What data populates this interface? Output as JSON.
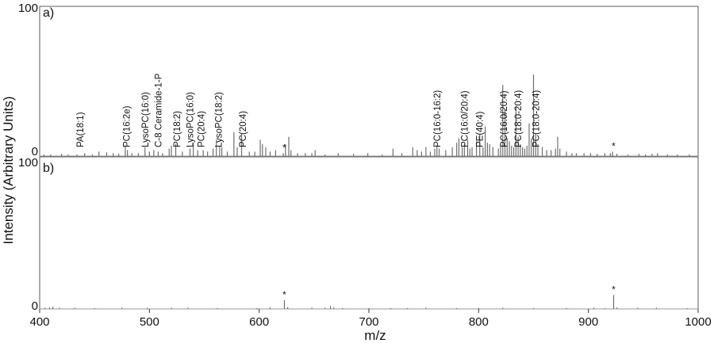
{
  "chart_data": {
    "type": "line",
    "xlabel": "m/z",
    "ylabel": "Intensity (Arbitrary Units)",
    "xlim": [
      400,
      1000
    ],
    "x_ticks": [
      400,
      500,
      600,
      700,
      800,
      900,
      1000
    ],
    "x_tick_labels": [
      "400",
      "500",
      "600",
      "700",
      "800",
      "900",
      "1000"
    ],
    "line_color": "#6e6e6e",
    "panels": [
      {
        "label": "a)",
        "ylim": [
          0,
          100
        ],
        "y_tick_labels": [
          "0",
          "100"
        ],
        "peaks": [
          [
            404,
            1
          ],
          [
            410,
            1
          ],
          [
            420,
            1.5
          ],
          [
            426,
            1
          ],
          [
            434,
            1
          ],
          [
            441,
            2
          ],
          [
            448,
            1
          ],
          [
            454,
            3
          ],
          [
            461,
            2.5
          ],
          [
            467,
            2
          ],
          [
            472,
            1.5
          ],
          [
            478,
            7
          ],
          [
            480,
            4
          ],
          [
            484,
            2
          ],
          [
            490,
            2
          ],
          [
            496,
            6
          ],
          [
            500,
            3
          ],
          [
            504,
            4
          ],
          [
            508,
            3
          ],
          [
            512,
            2
          ],
          [
            518,
            5
          ],
          [
            520,
            7
          ],
          [
            524,
            8
          ],
          [
            530,
            3
          ],
          [
            537,
            5
          ],
          [
            540,
            9
          ],
          [
            544,
            4
          ],
          [
            549,
            4
          ],
          [
            553,
            3
          ],
          [
            558,
            5
          ],
          [
            561,
            11
          ],
          [
            564,
            7
          ],
          [
            566,
            6
          ],
          [
            571,
            3
          ],
          [
            577,
            16
          ],
          [
            580,
            6
          ],
          [
            584,
            15
          ],
          [
            591,
            3
          ],
          [
            596,
            3
          ],
          [
            601,
            11
          ],
          [
            603,
            8
          ],
          [
            606,
            6
          ],
          [
            610,
            3
          ],
          [
            615,
            4
          ],
          [
            622,
            2
          ],
          [
            624,
            8
          ],
          [
            627,
            13
          ],
          [
            629,
            4
          ],
          [
            635,
            2
          ],
          [
            642,
            2
          ],
          [
            648,
            2
          ],
          [
            651,
            4
          ],
          [
            660,
            1
          ],
          [
            672,
            2
          ],
          [
            686,
            1.5
          ],
          [
            699,
            2
          ],
          [
            712,
            1
          ],
          [
            722,
            5
          ],
          [
            730,
            2
          ],
          [
            740,
            6
          ],
          [
            744,
            4
          ],
          [
            748,
            3
          ],
          [
            752,
            6
          ],
          [
            756,
            3
          ],
          [
            760,
            5
          ],
          [
            762,
            7
          ],
          [
            764,
            5
          ],
          [
            770,
            4
          ],
          [
            776,
            6
          ],
          [
            780,
            9
          ],
          [
            782,
            12
          ],
          [
            785,
            6
          ],
          [
            787,
            8
          ],
          [
            790,
            11
          ],
          [
            792,
            5
          ],
          [
            794,
            6
          ],
          [
            798,
            10
          ],
          [
            801,
            15
          ],
          [
            804,
            6
          ],
          [
            806,
            20
          ],
          [
            808,
            9
          ],
          [
            810,
            8
          ],
          [
            813,
            6
          ],
          [
            818,
            5
          ],
          [
            820,
            8
          ],
          [
            822,
            48
          ],
          [
            824,
            31
          ],
          [
            826,
            12
          ],
          [
            828,
            10
          ],
          [
            830,
            7
          ],
          [
            832,
            6
          ],
          [
            834,
            33
          ],
          [
            836,
            13
          ],
          [
            838,
            8
          ],
          [
            840,
            6
          ],
          [
            842,
            5
          ],
          [
            844,
            7
          ],
          [
            846,
            22
          ],
          [
            848,
            12
          ],
          [
            850,
            55
          ],
          [
            852,
            15
          ],
          [
            854,
            8
          ],
          [
            858,
            6
          ],
          [
            862,
            4
          ],
          [
            866,
            4
          ],
          [
            870,
            5
          ],
          [
            872,
            13
          ],
          [
            874,
            5
          ],
          [
            880,
            3
          ],
          [
            885,
            2
          ],
          [
            889,
            2
          ],
          [
            896,
            2
          ],
          [
            902,
            2
          ],
          [
            908,
            1.5
          ],
          [
            915,
            2
          ],
          [
            920,
            2
          ],
          [
            922,
            3
          ],
          [
            926,
            1.5
          ],
          [
            936,
            1
          ],
          [
            946,
            1.5
          ],
          [
            952,
            1
          ],
          [
            958,
            1.5
          ],
          [
            963,
            2
          ],
          [
            972,
            1
          ],
          [
            981,
            1
          ],
          [
            992,
            1
          ]
        ],
        "annotations": [
          {
            "text": "PA(18:1)",
            "x": 437
          },
          {
            "text": "PC(16:2e)",
            "x": 479
          },
          {
            "text": "LysoPC(16:0)",
            "x": 496
          },
          {
            "text": "C-8 Ceramide-1-P",
            "x": 508
          },
          {
            "text": "PC(18:2)",
            "x": 525
          },
          {
            "text": "LysoPC(16:0)",
            "x": 537
          },
          {
            "text": "PC(20:4)",
            "x": 547
          },
          {
            "text": "LysoPC(18:2)",
            "x": 563
          },
          {
            "text": "PC(20:4)",
            "x": 585
          },
          {
            "text": "PC(16:0-16:2)",
            "x": 762
          },
          {
            "text": "PC(16:0/20:4)",
            "x": 787
          },
          {
            "text": "PE(40:4)",
            "x": 801
          },
          {
            "text": "PC(16:0/20:4)",
            "x": 823
          },
          {
            "text": "PC(18:0-20:4)",
            "x": 836
          },
          {
            "text": "PC(18:0-20:4)",
            "x": 852
          }
        ],
        "stars": [
          {
            "text": "*",
            "x": 623
          },
          {
            "text": "*",
            "x": 923
          }
        ]
      },
      {
        "label": "b)",
        "ylim": [
          0,
          100
        ],
        "y_tick_labels": [
          "0",
          "100"
        ],
        "peaks": [
          [
            405,
            0.8
          ],
          [
            409,
            1
          ],
          [
            412,
            1.5
          ],
          [
            418,
            0.8
          ],
          [
            432,
            0.8
          ],
          [
            450,
            0.5
          ],
          [
            475,
            0.8
          ],
          [
            498,
            0.8
          ],
          [
            520,
            0.8
          ],
          [
            535,
            0.8
          ],
          [
            562,
            0.6
          ],
          [
            598,
            0.6
          ],
          [
            610,
            1
          ],
          [
            623,
            6
          ],
          [
            626,
            1.2
          ],
          [
            648,
            0.8
          ],
          [
            660,
            0.8
          ],
          [
            665,
            2
          ],
          [
            668,
            1
          ],
          [
            676,
            0.6
          ],
          [
            700,
            0.6
          ],
          [
            720,
            0.6
          ],
          [
            735,
            0.6
          ],
          [
            752,
            0.8
          ],
          [
            780,
            0.6
          ],
          [
            800,
            0.6
          ],
          [
            822,
            0.8
          ],
          [
            850,
            0.6
          ],
          [
            880,
            0.6
          ],
          [
            905,
            0.8
          ],
          [
            915,
            0.5
          ],
          [
            923,
            9.5
          ],
          [
            926,
            1
          ],
          [
            945,
            0.8
          ],
          [
            962,
            0.8
          ],
          [
            990,
            0.5
          ]
        ],
        "stars": [
          {
            "text": "*",
            "x": 623
          },
          {
            "text": "*",
            "x": 923
          }
        ]
      }
    ]
  }
}
